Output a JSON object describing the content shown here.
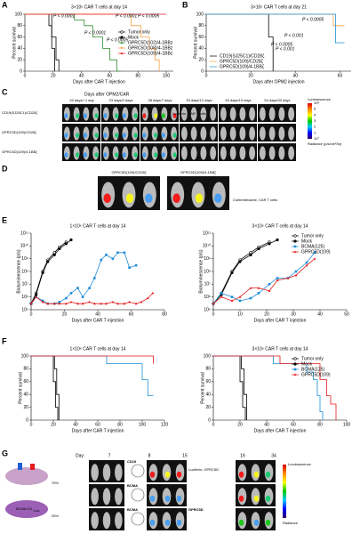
{
  "panel_labels": [
    "A",
    "B",
    "C",
    "D",
    "E",
    "F",
    "G"
  ],
  "chart_data": [
    {
      "type": "line",
      "title": "3×10⁶ CAR T cells at day 14",
      "xlabel": "Days after CAR T injection",
      "ylabel": "Percent survival",
      "xlim": [
        0,
        105
      ],
      "xticks": [
        0,
        20,
        40,
        60,
        80,
        100
      ],
      "ylim": [
        0,
        100
      ],
      "yticks": [
        0,
        20,
        40,
        60,
        80,
        100
      ],
      "log": false,
      "markers": false,
      "legend": "center right",
      "annotations": [
        "P < 0.0001",
        "P < 0.0001",
        "P < 0.0001"
      ],
      "series": [
        {
          "name": "Tumor only",
          "color": "#000000",
          "marker": "circle-open",
          "x": [
            0,
            17,
            17,
            19,
            19,
            21,
            21
          ],
          "values": [
            100,
            100,
            80,
            80,
            40,
            40,
            0
          ]
        },
        {
          "name": "Mock",
          "color": "#000000",
          "marker": "circle",
          "x": [
            0,
            19,
            19,
            22,
            22,
            24,
            24
          ],
          "values": [
            100,
            100,
            60,
            60,
            20,
            20,
            0
          ]
        },
        {
          "name": "GPRC5D(102)/4-1BBz",
          "color": "#2e8b2e",
          "marker": "triangle",
          "x": [
            0,
            35,
            35,
            42,
            42,
            48,
            48,
            55,
            55,
            60,
            60,
            65,
            65,
            68
          ],
          "values": [
            100,
            100,
            90,
            90,
            80,
            80,
            60,
            60,
            40,
            40,
            20,
            20,
            0,
            0
          ]
        },
        {
          "name": "GPRC5D(108)/4-1BBz",
          "color": "#f5a142",
          "marker": "triangle-down",
          "x": [
            0,
            75,
            75,
            82,
            82,
            88,
            88,
            92,
            92,
            95,
            95
          ],
          "values": [
            100,
            100,
            80,
            80,
            60,
            60,
            40,
            40,
            20,
            20,
            0
          ]
        },
        {
          "name": "GPRC5D(109)/4-1BBz",
          "color": "#e31a1c",
          "marker": "triangle",
          "x": [
            0,
            100
          ],
          "values": [
            100,
            100
          ]
        }
      ]
    },
    {
      "type": "line",
      "title": "3×10⁶ CAR T cells at day 21",
      "xlabel": "Days after OPM2 injection",
      "ylabel": "Percent survival",
      "xlim": [
        0,
        65
      ],
      "xticks": [
        0,
        20,
        40,
        60
      ],
      "ylim": [
        0,
        100
      ],
      "yticks": [
        0,
        20,
        40,
        60,
        80,
        100
      ],
      "log": false,
      "markers": false,
      "legend": "lower left",
      "annotations": [
        "P < 0.001",
        "P < 0.001"
      ],
      "series": [
        {
          "name": "CD19(SJ25C1)/CD28ζ",
          "color": "#000000",
          "marker": "line",
          "x": [
            0,
            28,
            28,
            30,
            30
          ],
          "values": [
            100,
            100,
            60,
            60,
            0
          ]
        },
        {
          "name": "GPRC5D(109)/CD28ζ",
          "color": "#f5a142",
          "marker": "line",
          "x": [
            0,
            57,
            57,
            62
          ],
          "values": [
            100,
            100,
            80,
            80
          ]
        },
        {
          "name": "GPRC5D(109)/4-1BBζ",
          "color": "#1f8dd6",
          "marker": "line",
          "x": [
            0,
            58,
            58,
            62
          ],
          "values": [
            100,
            100,
            50,
            50
          ]
        }
      ]
    },
    {
      "type": "line",
      "title": "1×10⁶ CAR T cells at day 14",
      "xlabel": "Days after CAR T injection",
      "ylabel": "Bioluminescence (p/s)",
      "xlim": [
        0,
        80
      ],
      "xticks": [
        0,
        20,
        40,
        60,
        80
      ],
      "ylim": [
        100000,
        100000000000
      ],
      "log": true,
      "markers": true,
      "yticks": [
        {
          "value": 100000,
          "label": "10⁵"
        },
        {
          "value": 1000000,
          "label": "10⁶"
        },
        {
          "value": 10000000,
          "label": "10⁷"
        },
        {
          "value": 100000000,
          "label": "10⁸"
        },
        {
          "value": 1000000000,
          "label": "10⁹"
        },
        {
          "value": 10000000000,
          "label": "10¹⁰"
        },
        {
          "value": 100000000000,
          "label": "10¹¹"
        }
      ],
      "series": [
        {
          "color": "#000000",
          "marker": "circle-open",
          "x": [
            0,
            3,
            7,
            10,
            14,
            17,
            21
          ],
          "values": [
            300000,
            2000000,
            100000000,
            800000000,
            3000000000,
            8000000000,
            20000000000
          ]
        },
        {
          "color": "#000000",
          "marker": "circle",
          "x": [
            0,
            3,
            7,
            10,
            14,
            17,
            21,
            24
          ],
          "values": [
            300000,
            1500000,
            80000000,
            600000000,
            2000000000,
            6000000000,
            15000000000,
            30000000000
          ]
        },
        {
          "color": "#1f8dd6",
          "marker": "square",
          "x": [
            0,
            3,
            7,
            10,
            14,
            17,
            21,
            24,
            28,
            31,
            35,
            38,
            42,
            45,
            49,
            52,
            56,
            59,
            63
          ],
          "values": [
            300000,
            1000000,
            500000,
            300000,
            300000,
            400000,
            800000,
            2000000,
            5000000,
            1000000,
            5000000,
            30000000,
            800000000,
            2000000000,
            1000000000,
            3000000000,
            3000000000,
            200000000,
            300000000
          ]
        },
        {
          "color": "#e31a1c",
          "marker": "triangle",
          "x": [
            0,
            3,
            7,
            10,
            14,
            17,
            21,
            24,
            28,
            31,
            35,
            38,
            42,
            45,
            49,
            52,
            56,
            59,
            63,
            66,
            70,
            73
          ],
          "values": [
            300000,
            1000000,
            400000,
            300000,
            300000,
            300000,
            300000,
            400000,
            300000,
            300000,
            400000,
            300000,
            300000,
            300000,
            400000,
            300000,
            300000,
            400000,
            300000,
            400000,
            800000,
            2000000
          ]
        }
      ]
    },
    {
      "type": "line",
      "title": "3×10⁶ CAR T cells at day 14",
      "xlabel": "Days after CAR T injection",
      "ylabel": "Bioluminescence (p/s)",
      "xlim": [
        0,
        50
      ],
      "xticks": [
        0,
        10,
        20,
        30,
        40,
        50
      ],
      "ylim": [
        100000,
        100000000000
      ],
      "log": true,
      "markers": true,
      "legend": "upper right",
      "yticks": [
        {
          "value": 100000,
          "label": "10⁵"
        },
        {
          "value": 1000000,
          "label": "10⁶"
        },
        {
          "value": 10000000,
          "label": "10⁷"
        },
        {
          "value": 100000000,
          "label": "10⁸"
        },
        {
          "value": 1000000000,
          "label": "10⁹"
        },
        {
          "value": 10000000000,
          "label": "10¹⁰"
        },
        {
          "value": 100000000000,
          "label": "10¹¹"
        }
      ],
      "series": [
        {
          "name": "Tumor only",
          "color": "#000000",
          "marker": "circle-open",
          "x": [
            0,
            3,
            7,
            10,
            14,
            17,
            21
          ],
          "values": [
            300000,
            2000000,
            100000000,
            800000000,
            3000000000,
            8000000000,
            20000000000
          ]
        },
        {
          "name": "Mock",
          "color": "#000000",
          "marker": "circle",
          "x": [
            0,
            3,
            7,
            10,
            14,
            17,
            21,
            24
          ],
          "values": [
            300000,
            1500000,
            80000000,
            600000000,
            2000000000,
            6000000000,
            15000000000,
            30000000000
          ]
        },
        {
          "name": "BCMA(125)",
          "color": "#1f8dd6",
          "marker": "square",
          "x": [
            0,
            3,
            7,
            10,
            14,
            17,
            21,
            24,
            28,
            31,
            35,
            38
          ],
          "values": [
            300000,
            2000000,
            1000000,
            500000,
            800000,
            2000000,
            10000000,
            30000000,
            30000000,
            100000000,
            500000000,
            3000000000
          ]
        },
        {
          "name": "GPRC5D(109)",
          "color": "#e31a1c",
          "marker": "triangle",
          "x": [
            0,
            3,
            7,
            10,
            14,
            17,
            21,
            24,
            28,
            31,
            35,
            38
          ],
          "values": [
            300000,
            1000000,
            500000,
            1000000,
            5000000,
            5000000,
            3000000,
            20000000,
            30000000,
            50000000,
            300000000,
            1000000000
          ]
        }
      ]
    },
    {
      "type": "line",
      "title": "1×10⁶ CAR T cells at day 14",
      "xlabel": "Days after CAR T injection",
      "ylabel": "Percent survival",
      "xlim": [
        0,
        120
      ],
      "xticks": [
        0,
        20,
        40,
        60,
        80,
        100,
        120
      ],
      "ylim": [
        0,
        100
      ],
      "yticks": [
        0,
        20,
        40,
        60,
        80,
        100
      ],
      "log": false,
      "markers": false,
      "annotations": [
        "P < 0.0005",
        "P < 0.0005"
      ],
      "series": [
        {
          "color": "#000000",
          "marker": "circle-open",
          "x": [
            0,
            20,
            20,
            22,
            22,
            24,
            24
          ],
          "values": [
            100,
            100,
            60,
            60,
            20,
            20,
            0
          ]
        },
        {
          "color": "#000000",
          "marker": "circle",
          "x": [
            0,
            21,
            21,
            23,
            23,
            25,
            25
          ],
          "values": [
            100,
            100,
            80,
            80,
            40,
            40,
            0
          ]
        },
        {
          "color": "#1f8dd6",
          "marker": "square",
          "x": [
            0,
            68,
            68,
            100,
            100,
            105,
            105,
            110
          ],
          "values": [
            100,
            100,
            88,
            88,
            63,
            63,
            38,
            38
          ]
        },
        {
          "color": "#e31a1c",
          "marker": "triangle",
          "x": [
            0,
            110,
            110
          ],
          "values": [
            100,
            100,
            88
          ]
        }
      ]
    },
    {
      "type": "line",
      "title": "3×10⁶ CAR T cells at day 14",
      "xlabel": "Days after CAR T injection",
      "ylabel": "Percent survival",
      "xlim": [
        0,
        100
      ],
      "xticks": [
        0,
        20,
        40,
        60,
        80,
        100
      ],
      "ylim": [
        0,
        100
      ],
      "yticks": [
        0,
        20,
        40,
        60,
        80,
        100
      ],
      "log": false,
      "markers": false,
      "legend": "upper right",
      "annotations": [
        "P < 0.0005",
        "P < 0.0005"
      ],
      "series": [
        {
          "name": "Tumor only",
          "color": "#000000",
          "marker": "circle-open",
          "x": [
            0,
            20,
            20,
            22,
            22,
            24,
            24
          ],
          "values": [
            100,
            100,
            60,
            60,
            20,
            20,
            0
          ]
        },
        {
          "name": "Mock",
          "color": "#000000",
          "marker": "circle",
          "x": [
            0,
            21,
            21,
            23,
            23,
            25,
            25
          ],
          "values": [
            100,
            100,
            80,
            80,
            40,
            40,
            0
          ]
        },
        {
          "name": "BCMA(125)",
          "color": "#1f8dd6",
          "marker": "square",
          "x": [
            0,
            45,
            45,
            70,
            70,
            75,
            75,
            78,
            78,
            80,
            80,
            82,
            82
          ],
          "values": [
            100,
            100,
            88,
            88,
            75,
            75,
            63,
            63,
            38,
            38,
            13,
            13,
            0
          ]
        },
        {
          "name": "GPRC5D(109)",
          "color": "#e31a1c",
          "marker": "triangle",
          "x": [
            0,
            50,
            50,
            80,
            80,
            85,
            85,
            88,
            88,
            92,
            92
          ],
          "values": [
            100,
            100,
            88,
            88,
            63,
            63,
            38,
            38,
            25,
            25,
            0
          ]
        }
      ]
    }
  ],
  "panel_c": {
    "header": "Days after OPM2/CAR",
    "columns": [
      "20 days/−1 day",
      "23 days/2 days",
      "28 days/7 days",
      "33 days/12 days",
      "40 days/19 days",
      "54 days/33 days"
    ],
    "rows": [
      "CD19(SJ25C1)/CD28ζ",
      "GPRC5D(109)/CD28ζ",
      "GPRC5D(109)/4-1BBζ"
    ],
    "note": "Luciferin, CAR T cells",
    "colorbar": {
      "title": "Luminescence",
      "labels": [
        "10⁸",
        "5",
        "4",
        "3",
        "2",
        "1",
        "10⁷"
      ],
      "unit": "Radiance (p/s/cm²/sr)"
    }
  },
  "panel_d": {
    "labels": [
      "GPRC5D(109)/CD28ζ",
      "GPRC5D(109)/4-1BBζ"
    ],
    "note": "Coelenterazine, CAR T cells"
  },
  "panel_g": {
    "day": "Day:",
    "days": [
      "7",
      "8",
      "15",
      "16",
      "34"
    ],
    "percents": [
      "75%",
      "25%"
    ],
    "cell_labels": [
      "BCMA KO",
      "Luc"
    ],
    "row_labels": [
      "CD19",
      "BCMA",
      "BCMA",
      "GPRC5D"
    ],
    "note": "Luciferin, GPRC5D",
    "colorbar": [
      "Luminescence",
      "Radiance"
    ]
  }
}
